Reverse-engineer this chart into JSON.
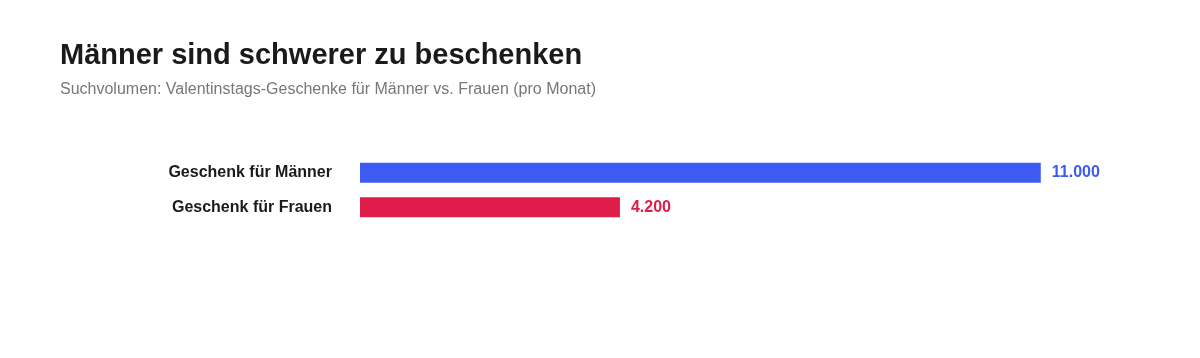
{
  "chart_data": {
    "type": "bar",
    "orientation": "horizontal",
    "title": "Männer sind schwerer zu beschenken",
    "subtitle": "Suchvolumen: Valentinstags-Geschenke für Männer vs. Frauen (pro Monat)",
    "categories": [
      "Geschenk für Männer",
      "Geschenk für Frauen"
    ],
    "values": [
      11000,
      4200
    ],
    "colors": [
      "#3d5af1",
      "#e01c4b"
    ],
    "value_labels": [
      "11.000",
      "4.200"
    ],
    "data_labels": false
  }
}
